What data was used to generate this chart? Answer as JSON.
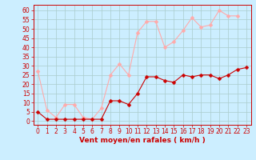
{
  "x": [
    0,
    1,
    2,
    3,
    4,
    5,
    6,
    7,
    8,
    9,
    10,
    11,
    12,
    13,
    14,
    15,
    16,
    17,
    18,
    19,
    20,
    21,
    22,
    23
  ],
  "vent_moyen": [
    5,
    1,
    1,
    1,
    1,
    1,
    1,
    1,
    11,
    11,
    9,
    15,
    24,
    24,
    22,
    21,
    25,
    24,
    25,
    25,
    23,
    25,
    28,
    29
  ],
  "rafales": [
    27,
    6,
    2,
    9,
    9,
    2,
    1,
    7,
    25,
    31,
    25,
    48,
    54,
    54,
    40,
    43,
    49,
    56,
    51,
    52,
    60,
    57,
    57,
    null
  ],
  "color_moyen": "#cc0000",
  "color_rafales": "#ffaaaa",
  "bg_color": "#cceeff",
  "grid_color": "#aacccc",
  "xlabel": "Vent moyen/en rafales ( km/h )",
  "ylabel_ticks": [
    0,
    5,
    10,
    15,
    20,
    25,
    30,
    35,
    40,
    45,
    50,
    55,
    60
  ],
  "ylim": [
    -2,
    63
  ],
  "xlim": [
    -0.5,
    23.5
  ],
  "marker_size": 2.5,
  "linewidth": 0.8,
  "tick_fontsize": 5.5,
  "xlabel_fontsize": 6.5
}
